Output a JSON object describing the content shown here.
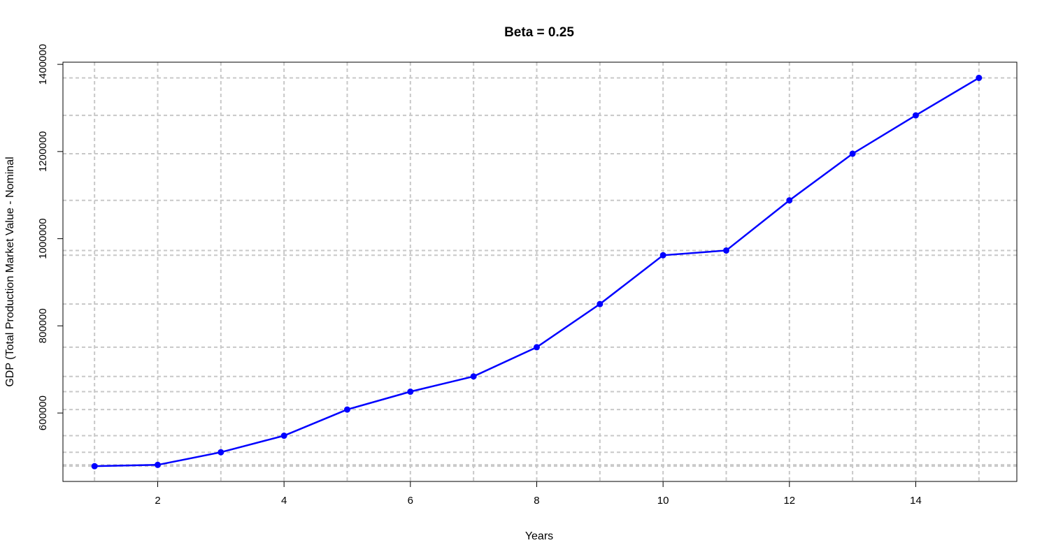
{
  "chart_data": {
    "type": "line",
    "title": "Beta = 0.25",
    "xlabel": "Years",
    "ylabel": "GDP (Total Production Market Value - Nominal",
    "x": [
      1,
      2,
      3,
      4,
      5,
      6,
      7,
      8,
      9,
      10,
      11,
      12,
      13,
      14,
      15
    ],
    "series": [
      {
        "values": [
          478000,
          481000,
          510000,
          548000,
          608000,
          649000,
          684000,
          751000,
          850000,
          962000,
          973000,
          1088000,
          1195000,
          1283000,
          1369000
        ],
        "color": "#0000ff"
      }
    ],
    "xlim": [
      0.5,
      15.6
    ],
    "ylim": [
      443000,
      1405000
    ],
    "xticks": [
      2,
      4,
      6,
      8,
      10,
      12,
      14
    ],
    "yticks": [
      600000,
      800000,
      1000000,
      1200000,
      1400000
    ],
    "xtick_labels": [
      "2",
      "4",
      "6",
      "8",
      "10",
      "12",
      "14"
    ],
    "ytick_labels": [
      "600000",
      "800000",
      "1000000",
      "1200000",
      "1400000"
    ],
    "grid": true,
    "grid_style": "dashed lines at every data x and every data y value",
    "marker": "filled circle"
  }
}
